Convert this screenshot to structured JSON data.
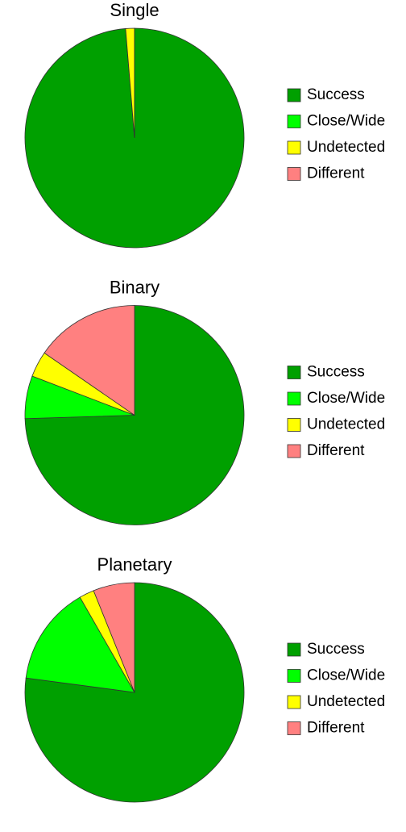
{
  "chart_data": [
    {
      "type": "pie",
      "title": "Single",
      "categories": [
        "Success",
        "Close/Wide",
        "Undetected",
        "Different"
      ],
      "values": [
        98.7,
        0,
        1.3,
        0
      ],
      "colors": [
        "#00a000",
        "#00ff00",
        "#ffff00",
        "#ff8080"
      ]
    },
    {
      "type": "pie",
      "title": "Binary",
      "categories": [
        "Success",
        "Close/Wide",
        "Undetected",
        "Different"
      ],
      "values": [
        74.5,
        6.3,
        3.8,
        15.4
      ],
      "colors": [
        "#00a000",
        "#00ff00",
        "#ffff00",
        "#ff8080"
      ]
    },
    {
      "type": "pie",
      "title": "Planetary",
      "categories": [
        "Success",
        "Close/Wide",
        "Undetected",
        "Different"
      ],
      "values": [
        77.1,
        14.6,
        2.2,
        6.1
      ],
      "colors": [
        "#00a000",
        "#00ff00",
        "#ffff00",
        "#ff8080"
      ]
    }
  ]
}
